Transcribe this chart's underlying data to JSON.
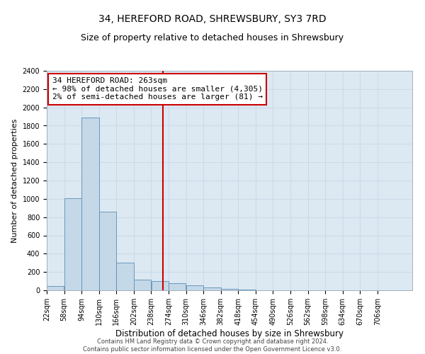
{
  "title": "34, HEREFORD ROAD, SHREWSBURY, SY3 7RD",
  "subtitle": "Size of property relative to detached houses in Shrewsbury",
  "xlabel": "Distribution of detached houses by size in Shrewsbury",
  "ylabel": "Number of detached properties",
  "footer_line1": "Contains HM Land Registry data © Crown copyright and database right 2024.",
  "footer_line2": "Contains public sector information licensed under the Open Government Licence v3.0.",
  "annotation_line1": "34 HEREFORD ROAD: 263sqm",
  "annotation_line2": "← 98% of detached houses are smaller (4,305)",
  "annotation_line3": "2% of semi-detached houses are larger (81) →",
  "bin_starts": [
    22,
    58,
    94,
    130,
    166,
    202,
    238,
    274,
    310,
    346,
    382,
    418,
    454,
    490,
    526,
    562,
    598,
    634,
    670,
    706
  ],
  "bar_heights": [
    50,
    1010,
    1890,
    860,
    300,
    120,
    100,
    75,
    55,
    30,
    15,
    5,
    0,
    0,
    0,
    0,
    0,
    0,
    0,
    0
  ],
  "bin_width": 36,
  "bar_color": "#c5d8e8",
  "bar_edge_color": "#5a8fb5",
  "vline_color": "#cc0000",
  "vline_x": 263,
  "annotation_box_edgecolor": "#cc0000",
  "ylim": [
    0,
    2400
  ],
  "yticks": [
    0,
    200,
    400,
    600,
    800,
    1000,
    1200,
    1400,
    1600,
    1800,
    2000,
    2200,
    2400
  ],
  "grid_color": "#c8d8e8",
  "background_color": "#dce8f2",
  "title_fontsize": 10,
  "subtitle_fontsize": 9,
  "axis_label_fontsize": 8,
  "tick_label_fontsize": 7,
  "footer_fontsize": 6,
  "annotation_fontsize": 8
}
